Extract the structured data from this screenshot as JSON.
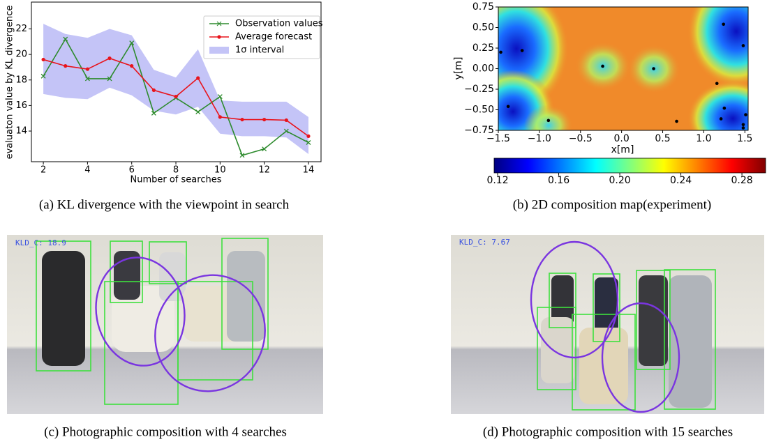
{
  "chart_data": [
    {
      "type": "line",
      "xlabel": "Number of searches",
      "ylabel": "evaluaton value by KL divergence",
      "x": [
        2,
        3,
        4,
        5,
        6,
        7,
        8,
        9,
        10,
        11,
        12,
        13,
        14
      ],
      "xlim": [
        1.46,
        14.57
      ],
      "ylim": [
        11.6,
        24.1
      ],
      "xticks": [
        2,
        4,
        6,
        8,
        10,
        12,
        14
      ],
      "yticks": [
        14,
        16,
        18,
        20,
        22
      ],
      "legend": "upper right",
      "series": [
        {
          "name": "Observation values",
          "color": "#2e8b2e",
          "marker": "x",
          "values": [
            18.3,
            21.2,
            18.1,
            18.1,
            20.9,
            15.4,
            16.6,
            15.5,
            16.7,
            12.1,
            12.6,
            14.0,
            13.1
          ]
        },
        {
          "name": "Average forecast",
          "color": "#e8141c",
          "marker": "o",
          "values": [
            19.6,
            19.1,
            18.85,
            19.7,
            19.1,
            17.2,
            16.7,
            18.15,
            15.1,
            14.9,
            14.9,
            14.85,
            13.6
          ]
        },
        {
          "name": "1σ interval",
          "color": "#c4c4f7",
          "type": "band",
          "upper": [
            22.4,
            21.6,
            21.3,
            22.0,
            21.5,
            18.8,
            18.2,
            20.4,
            16.4,
            16.3,
            16.3,
            16.3,
            15.1
          ],
          "lower": [
            16.9,
            16.6,
            16.5,
            17.4,
            16.8,
            15.6,
            15.3,
            15.9,
            13.8,
            13.6,
            13.6,
            13.5,
            12.2
          ]
        }
      ]
    },
    {
      "type": "scatter",
      "xlabel": "x[m]",
      "ylabel": "y[m]",
      "xlim": [
        -1.5,
        1.54
      ],
      "ylim": [
        -0.75,
        0.75
      ],
      "xticks": [
        {
          "value": -1.5,
          "label": "−1.5"
        },
        {
          "value": -1.0,
          "label": "−1.0"
        },
        {
          "value": -0.5,
          "label": "−0.5"
        },
        {
          "value": 0,
          "label": "0.0"
        },
        {
          "value": 0.5,
          "label": "0.5"
        },
        {
          "value": 1.0,
          "label": "1.0"
        },
        {
          "value": 1.5,
          "label": "1.5"
        }
      ],
      "yticks": [
        {
          "value": 0.75,
          "label": "0.75"
        },
        {
          "value": 0.5,
          "label": "0.50"
        },
        {
          "value": 0.25,
          "label": "0.25"
        },
        {
          "value": 0,
          "label": "0.00"
        },
        {
          "value": -0.25,
          "label": "−0.25"
        },
        {
          "value": -0.5,
          "label": "−0.50"
        },
        {
          "value": -0.75,
          "label": "−0.75"
        }
      ],
      "color": "#000000",
      "x": [
        -1.47,
        -1.21,
        -0.23,
        0.39,
        1.24,
        1.48,
        1.16,
        -1.38,
        -0.89,
        0.67,
        1.25,
        1.21,
        1.51,
        1.48,
        1.48
      ],
      "y": [
        0.2,
        0.22,
        0.03,
        0.0,
        0.54,
        0.28,
        -0.18,
        -0.46,
        -0.63,
        -0.64,
        -0.48,
        -0.61,
        -0.56,
        -0.68,
        -0.72
      ],
      "colorbar": {
        "colormap": "jet",
        "lim": [
          0.1177,
          0.2955
        ],
        "ticks": [
          0.12,
          0.16,
          {
            "value": 0.2,
            "label": "0.20"
          },
          0.24,
          0.28
        ]
      }
    }
  ],
  "captions": [
    "(a) KL divergence with the viewpoint in search",
    "(b) 2D composition map(experiment)",
    "(c) Photographic composition with 4 searches",
    "(d) Photographic composition with 15 searches"
  ],
  "photos": [
    {
      "label": "KLD_C: 18.9"
    },
    {
      "label": "KLD_C: 7.67"
    }
  ]
}
